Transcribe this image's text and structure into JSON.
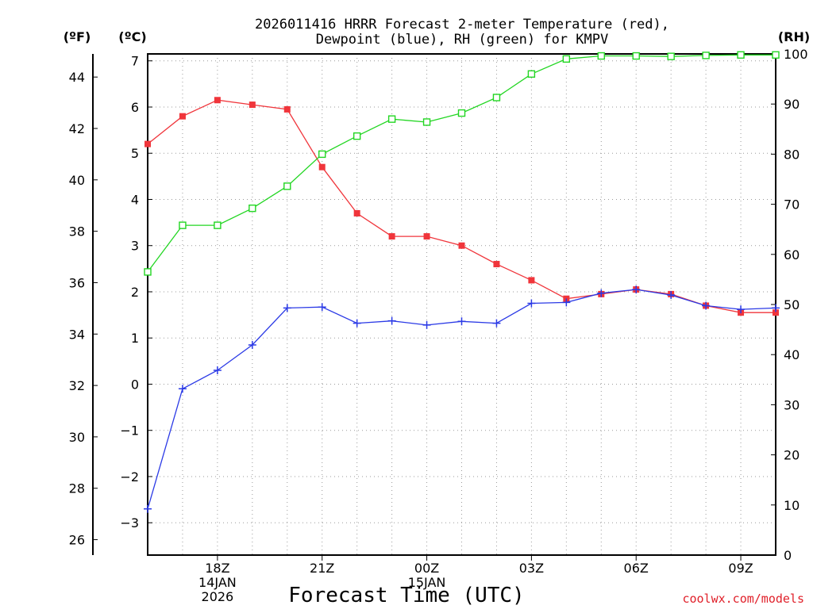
{
  "colors": {
    "temperature": "#f0353b",
    "dewpoint": "#2b3ae6",
    "rh": "#22d622"
  },
  "chart_data": {
    "type": "line",
    "title": "2026011416 HRRR Forecast 2-meter Temperature (red),",
    "subtitle": "Dewpoint (blue), RH (green) for KMPV",
    "xlabel": "Forecast Time (UTC)",
    "credit": "coolwx.com/models",
    "units": {
      "fahrenheit": "(ºF)",
      "celsius": "(ºC)",
      "rh": "(RH)"
    },
    "x": [
      16,
      17,
      18,
      19,
      20,
      21,
      22,
      23,
      24,
      25,
      26,
      27,
      28,
      29,
      30,
      31,
      32,
      33,
      34
    ],
    "xlim": [
      16,
      34
    ],
    "ylim_c": [
      -3.7,
      7.15
    ],
    "ylim_f": [
      25.4,
      44.9
    ],
    "ylim_rh": [
      0,
      100
    ],
    "x_ticks": [
      {
        "x": 18,
        "lines": [
          "18Z",
          "14JAN",
          "2026"
        ]
      },
      {
        "x": 21,
        "lines": [
          "21Z"
        ]
      },
      {
        "x": 24,
        "lines": [
          "00Z",
          "15JAN"
        ]
      },
      {
        "x": 27,
        "lines": [
          "03Z"
        ]
      },
      {
        "x": 30,
        "lines": [
          "06Z"
        ]
      },
      {
        "x": 33,
        "lines": [
          "09Z"
        ]
      }
    ],
    "y_ticks_c": [
      "-3",
      "-2",
      "-1",
      "0",
      "1",
      "2",
      "3",
      "4",
      "5",
      "6",
      "7"
    ],
    "y_ticks_f": [
      "26",
      "28",
      "30",
      "32",
      "34",
      "36",
      "38",
      "40",
      "42",
      "44"
    ],
    "y_ticks_rh": [
      "0",
      "10",
      "20",
      "30",
      "40",
      "50",
      "60",
      "70",
      "80",
      "90",
      "100"
    ],
    "series": [
      {
        "name": "Temperature",
        "axis": "c",
        "marker": "filled-square",
        "color": "#f0353b",
        "values": [
          5.2,
          5.8,
          6.15,
          6.05,
          5.95,
          4.7,
          3.7,
          3.2,
          3.2,
          3.0,
          2.6,
          2.25,
          1.85,
          1.95,
          2.05,
          1.95,
          1.7,
          1.55,
          1.55
        ]
      },
      {
        "name": "Dewpoint",
        "axis": "c",
        "marker": "plus",
        "color": "#2b3ae6",
        "values": [
          -2.7,
          -0.1,
          0.3,
          0.85,
          1.65,
          1.67,
          1.32,
          1.37,
          1.28,
          1.36,
          1.32,
          1.75,
          1.77,
          1.97,
          2.05,
          1.93,
          1.7,
          1.62,
          1.65
        ]
      },
      {
        "name": "RH",
        "axis": "rh",
        "marker": "open-square",
        "color": "#22d622",
        "values": [
          56.5,
          65.8,
          65.8,
          69.2,
          73.6,
          80.0,
          83.6,
          87.0,
          86.4,
          88.2,
          91.3,
          96.0,
          99.0,
          99.6,
          99.6,
          99.5,
          99.7,
          99.8,
          99.8
        ]
      }
    ]
  }
}
